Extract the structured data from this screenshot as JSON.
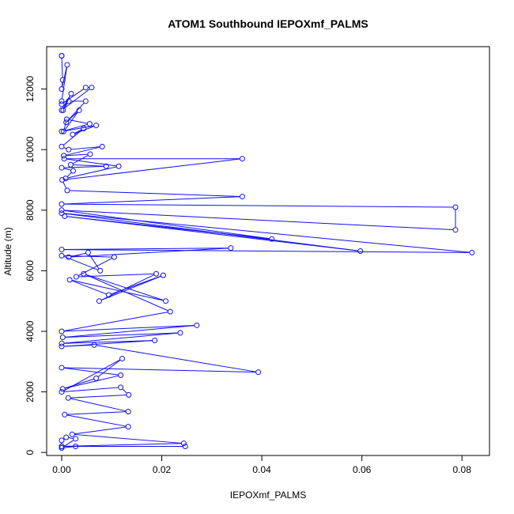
{
  "chart_data": {
    "type": "line",
    "title": "ATOM1 Southbound IEPOXmf_PALMS",
    "xlabel": "IEPOXmf_PALMS",
    "ylabel": "Altitude (m)",
    "xlim": [
      -0.003,
      0.0855
    ],
    "ylim": [
      -100,
      13400
    ],
    "x_ticks": [
      0,
      0.02,
      0.04,
      0.06,
      0.08
    ],
    "x_tick_labels": [
      "0.00",
      "0.02",
      "0.04",
      "0.06",
      "0.08"
    ],
    "y_ticks": [
      0,
      2000,
      4000,
      6000,
      8000,
      10000,
      12000
    ],
    "y_tick_labels": [
      "0",
      "2000",
      "4000",
      "6000",
      "8000",
      "10000",
      "12000"
    ],
    "grid": false,
    "legend": "none",
    "color": "#1010f0",
    "series": [
      {
        "x": [
          0.0,
          0.0,
          0.0002,
          0.0,
          0.0011,
          0.0,
          0.0,
          0.0048,
          0.006,
          0.0,
          0.0019,
          0.0003,
          0.0014,
          0.0048,
          0.0009,
          0.0035,
          0.0004,
          0.001,
          0.0056,
          0.0,
          0.0069,
          0.0022,
          0.0044,
          0.0,
          0.0014,
          0.0081,
          0.0004,
          0.0057,
          0.0018,
          0.0089,
          0.0,
          0.0023,
          0.0008,
          0.0114,
          0.0005,
          0.0361,
          0.0001,
          0.0011,
          0.0361,
          0.0,
          0.0787,
          0.0787,
          0.0,
          0.042,
          0.0006,
          0.0597,
          0.0,
          0.082,
          0.0,
          0.0338,
          0.0014,
          0.0053,
          0.0077,
          0.0,
          0.0105,
          0.0029,
          0.0189,
          0.0075,
          0.0203,
          0.0094,
          0.0016,
          0.0208,
          0.0044,
          0.0217,
          0.0,
          0.027,
          0.0002,
          0.0237,
          0.0,
          0.0186,
          0.0,
          0.0065,
          0.0393,
          0.0,
          0.0118,
          0.0002,
          0.0069,
          0.0121,
          0.0,
          0.0118,
          0.0134,
          0.0013,
          0.0133,
          0.0006,
          0.0133,
          0.0021,
          0.0244,
          0.0,
          0.0247,
          0.0028,
          0.0,
          0.0028,
          0.0009,
          0.0,
          0.0,
          0.0
        ],
        "y": [
          13100,
          13100,
          12300,
          12000,
          12800,
          11600,
          11500,
          12050,
          12050,
          11300,
          11850,
          11300,
          11600,
          11600,
          10900,
          11300,
          10600,
          11000,
          10850,
          10600,
          10800,
          10500,
          10700,
          10100,
          10000,
          10100,
          9800,
          9850,
          9500,
          9450,
          9400,
          9300,
          9050,
          9450,
          9700,
          9700,
          9000,
          8650,
          8450,
          8200,
          8100,
          7350,
          8000,
          7050,
          7800,
          6650,
          7900,
          6600,
          6700,
          6750,
          6450,
          6600,
          6000,
          6500,
          6450,
          5800,
          5900,
          5000,
          5850,
          5200,
          5700,
          5000,
          5900,
          4650,
          4000,
          4200,
          3800,
          3950,
          3600,
          3700,
          3500,
          3550,
          2650,
          2800,
          2550,
          2100,
          2450,
          3100,
          2000,
          2150,
          1900,
          1800,
          1350,
          1250,
          850,
          600,
          300,
          200,
          200,
          200,
          150,
          450,
          500,
          400,
          200,
          150
        ]
      }
    ]
  }
}
